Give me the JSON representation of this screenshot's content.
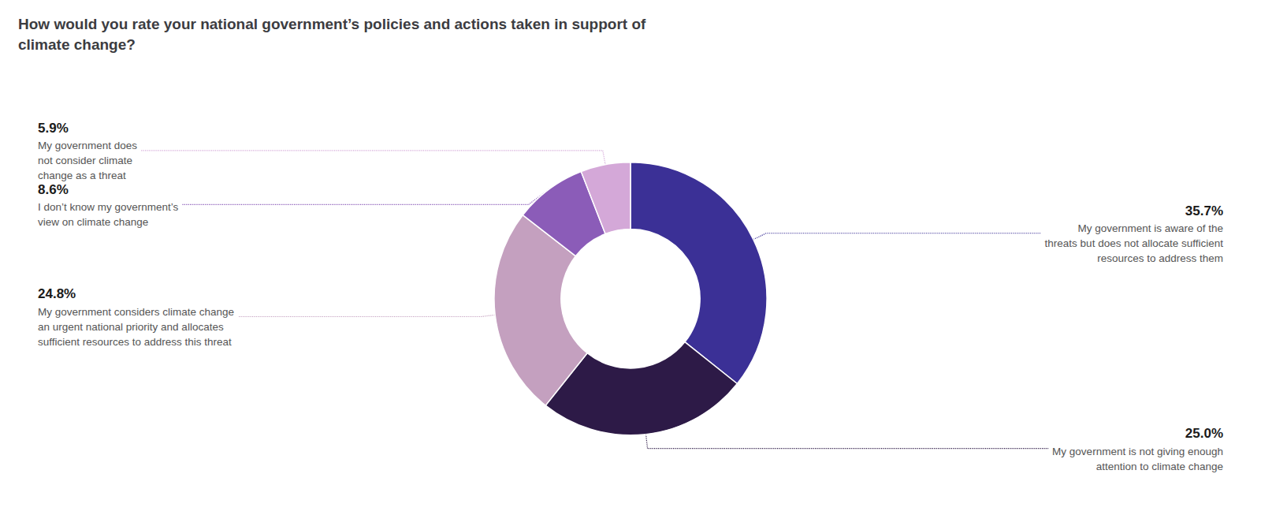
{
  "chart_data": {
    "type": "donut",
    "title": "How would you rate your national government’s policies and actions taken in support of\nclimate change?",
    "categories": [
      "My government is aware of the\nthreats but does not allocate sufficient\nresources to address them",
      "My government is not giving enough\nattention to climate change",
      "My government considers climate change\nan urgent national priority and allocates\nsufficient resources to address this threat",
      "I don’t know my government’s\nview on climate change",
      "My government does\nnot consider climate\nchange as a threat"
    ],
    "values": [
      35.7,
      25.0,
      24.8,
      8.6,
      5.9
    ],
    "value_labels": [
      "35.7%",
      "25.0%",
      "24.8%",
      "8.6%",
      "5.9%"
    ],
    "colors": [
      "#3b3096",
      "#2d1a47",
      "#c4a0bf",
      "#8b5cb8",
      "#d4a8d8"
    ],
    "data_labels": true
  }
}
